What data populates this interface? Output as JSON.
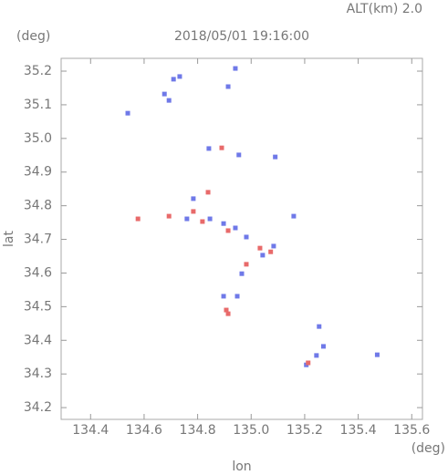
{
  "chart_data": {
    "type": "scatter",
    "subtitle": "ALT(km) 2.0",
    "title": "2018/05/01 19:16:00",
    "y_unit": "(deg)",
    "x_unit": "(deg)",
    "xlabel": "lon",
    "ylabel": "lat",
    "xlim": [
      134.29,
      135.64
    ],
    "ylim": [
      34.165,
      35.238
    ],
    "xticks": [
      134.4,
      134.6,
      134.8,
      {
        "value": 135,
        "label": "135.0"
      },
      135.2,
      135.4,
      135.6
    ],
    "yticks": [
      34.2,
      34.3,
      34.4,
      34.5,
      34.6,
      34.7,
      34.8,
      34.9,
      {
        "value": 35,
        "label": "35.0"
      },
      35.1,
      35.2
    ],
    "series": [
      {
        "color": "#6f79e8",
        "x": [
          134.71,
          134.733,
          134.941,
          134.676,
          134.693,
          134.539,
          134.914,
          134.842,
          134.954,
          135.09,
          134.784,
          134.846,
          134.897,
          134.941,
          134.76,
          134.982,
          135.043,
          135.084,
          134.965,
          134.948,
          134.897,
          135.254,
          135.244,
          135.27,
          135.471,
          135.206,
          135.159
        ],
        "values": [
          35.176,
          35.184,
          35.208,
          35.132,
          35.113,
          35.075,
          35.154,
          34.97,
          34.951,
          34.945,
          34.821,
          34.761,
          34.747,
          34.734,
          34.761,
          34.707,
          34.653,
          34.68,
          34.598,
          34.531,
          34.531,
          34.441,
          34.355,
          34.382,
          34.357,
          34.327,
          34.769
        ]
      },
      {
        "color": "#e86a6a",
        "x": [
          134.577,
          134.693,
          134.839,
          134.89,
          134.818,
          134.914,
          135.033,
          135.073,
          134.907,
          134.914,
          135.213,
          134.982,
          134.784
        ],
        "values": [
          34.761,
          34.769,
          34.84,
          34.972,
          34.753,
          34.726,
          34.674,
          34.663,
          34.49,
          34.479,
          34.333,
          34.626,
          34.783
        ]
      }
    ]
  }
}
